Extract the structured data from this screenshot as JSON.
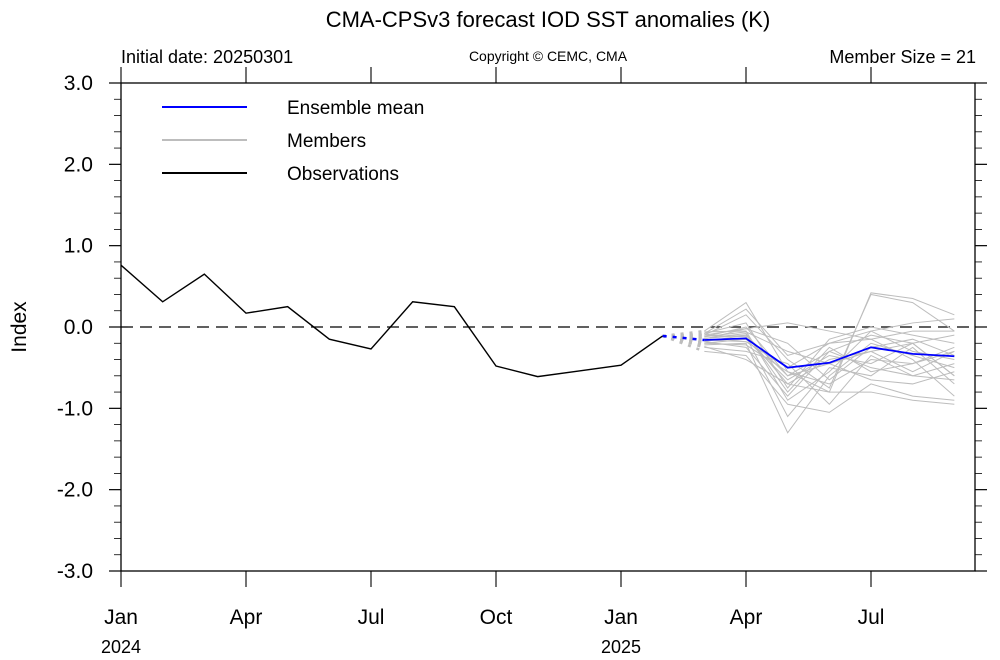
{
  "chart_data": {
    "type": "line",
    "title": "CMA-CPSv3 forecast IOD SST anomalies (K)",
    "subtitle_left": "Initial date: 20250301",
    "subtitle_center": "Copyright © CEMC, CMA",
    "subtitle_right": "Member Size = 21",
    "ylabel": "Index",
    "xlabel": "",
    "ylim": [
      -3.0,
      3.0
    ],
    "yticks": [
      3.0,
      2.0,
      1.0,
      0.0,
      -1.0,
      -2.0,
      -3.0
    ],
    "ytick_labels": [
      "3.0",
      "2.0",
      "1.0",
      "0.0",
      "-1.0",
      "-2.0",
      "-3.0"
    ],
    "y_minor_step": 0.2,
    "xlim_months": [
      "2024-01",
      "2025-10"
    ],
    "xticks": [
      {
        "month": "2024-01",
        "label": "Jan",
        "year_label": "2024"
      },
      {
        "month": "2024-04",
        "label": "Apr",
        "year_label": ""
      },
      {
        "month": "2024-07",
        "label": "Jul",
        "year_label": ""
      },
      {
        "month": "2024-10",
        "label": "Oct",
        "year_label": ""
      },
      {
        "month": "2025-01",
        "label": "Jan",
        "year_label": "2025"
      },
      {
        "month": "2025-04",
        "label": "Apr",
        "year_label": ""
      },
      {
        "month": "2025-07",
        "label": "Jul",
        "year_label": ""
      }
    ],
    "zero_line": {
      "value": 0.0,
      "style": "dashed"
    },
    "legend": {
      "position": "top-left",
      "entries": [
        {
          "label": "Ensemble mean",
          "color": "#0000ff"
        },
        {
          "label": "Members",
          "color": "#bdbdbd"
        },
        {
          "label": "Observations",
          "color": "#000000"
        }
      ]
    },
    "observations": {
      "name": "Observations",
      "color": "#000000",
      "x": [
        "2024-01",
        "2024-02",
        "2024-03",
        "2024-04",
        "2024-05",
        "2024-06",
        "2024-07",
        "2024-08",
        "2024-09",
        "2024-10",
        "2024-11",
        "2024-12",
        "2025-01",
        "2025-02"
      ],
      "values": [
        0.76,
        0.31,
        0.65,
        0.17,
        0.25,
        -0.15,
        -0.27,
        0.31,
        0.25,
        -0.48,
        -0.61,
        -0.54,
        -0.47,
        -0.11
      ]
    },
    "ensemble_mean": {
      "name": "Ensemble mean",
      "color": "#0000ff",
      "x": [
        "2025-03",
        "2025-04",
        "2025-05",
        "2025-06",
        "2025-07",
        "2025-08",
        "2025-09"
      ],
      "values": [
        -0.16,
        -0.14,
        -0.5,
        -0.44,
        -0.25,
        -0.33,
        -0.36
      ],
      "connector_from": {
        "month": "2025-02",
        "value": -0.11,
        "style": "dotted"
      }
    },
    "members": {
      "name": "Members",
      "color": "#bdbdbd",
      "x": [
        "2025-03",
        "2025-04",
        "2025-05",
        "2025-06",
        "2025-07",
        "2025-08",
        "2025-09"
      ],
      "connector_from": {
        "month": "2025-02",
        "value": -0.11,
        "style": "dotted"
      },
      "series": [
        [
          -0.05,
          0.3,
          -0.55,
          -0.8,
          0.42,
          0.35,
          0.15
        ],
        [
          -0.08,
          0.22,
          -0.35,
          -0.2,
          -0.05,
          0.05,
          0.1
        ],
        [
          -0.1,
          0.15,
          -0.4,
          -0.75,
          0.4,
          0.3,
          -0.05
        ],
        [
          -0.12,
          0.0,
          -0.6,
          -0.3,
          -0.1,
          -0.2,
          -0.1
        ],
        [
          -0.15,
          -0.02,
          0.05,
          -0.05,
          -0.15,
          -0.05,
          -0.05
        ],
        [
          -0.18,
          -0.1,
          -0.7,
          -0.4,
          -0.3,
          -0.55,
          -0.3
        ],
        [
          -0.06,
          -0.05,
          -0.9,
          -0.55,
          -0.05,
          -0.3,
          -0.4
        ],
        [
          -0.2,
          -0.15,
          -0.65,
          -0.35,
          -0.45,
          -0.2,
          -0.6
        ],
        [
          -0.22,
          -0.2,
          -1.3,
          -0.6,
          -0.2,
          -0.35,
          -0.5
        ],
        [
          -0.14,
          -0.08,
          -0.8,
          -0.25,
          -0.55,
          -0.45,
          -0.25
        ],
        [
          -0.25,
          -0.3,
          -0.45,
          -0.95,
          -0.35,
          -0.6,
          -0.65
        ],
        [
          -0.1,
          -0.12,
          -1.1,
          -0.5,
          -0.6,
          -0.25,
          -0.7
        ],
        [
          -0.16,
          -0.18,
          -0.5,
          -0.2,
          -0.15,
          -0.4,
          -0.85
        ],
        [
          -0.3,
          -0.35,
          -0.95,
          -1.05,
          -0.7,
          -0.85,
          -0.9
        ],
        [
          -0.12,
          -0.06,
          -0.3,
          -0.45,
          -0.65,
          -0.7,
          -0.55
        ],
        [
          -0.08,
          0.05,
          -0.75,
          -0.15,
          0.0,
          -0.1,
          -0.2
        ],
        [
          -0.2,
          -0.22,
          -0.55,
          -0.7,
          -0.4,
          -0.45,
          -0.3
        ],
        [
          -0.18,
          -0.25,
          -0.85,
          -0.3,
          -0.5,
          -0.6,
          -0.45
        ],
        [
          -0.1,
          -0.02,
          -0.2,
          -0.65,
          -0.25,
          -0.15,
          -0.35
        ],
        [
          -0.24,
          -0.4,
          -0.7,
          -0.8,
          -0.8,
          -0.9,
          -0.95
        ],
        [
          -0.14,
          -0.1,
          -0.6,
          -0.45,
          -0.3,
          -0.2,
          -0.6
        ]
      ]
    }
  }
}
